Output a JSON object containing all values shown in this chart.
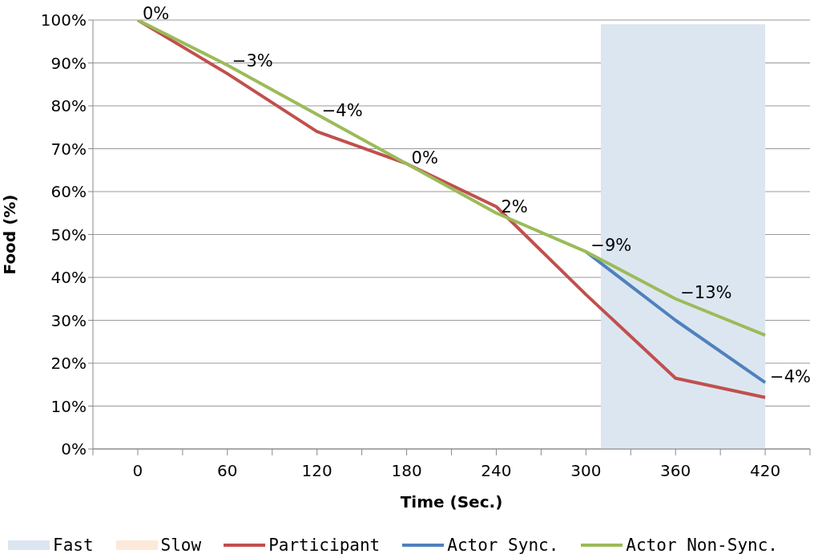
{
  "chart_data": {
    "type": "line",
    "xlabel": "Time (Sec.)",
    "ylabel": "Food (%)",
    "x": [
      0,
      60,
      120,
      180,
      240,
      300,
      360,
      420
    ],
    "xlim": [
      -30,
      450
    ],
    "xticks": [
      {
        "value": -30,
        "label": null
      },
      {
        "value": 0,
        "label": "0"
      },
      {
        "value": 30,
        "label": null
      },
      {
        "value": 60,
        "label": "60"
      },
      {
        "value": 90,
        "label": null
      },
      {
        "value": 120,
        "label": "120"
      },
      {
        "value": 150,
        "label": null
      },
      {
        "value": 180,
        "label": "180"
      },
      {
        "value": 210,
        "label": null
      },
      {
        "value": 240,
        "label": "240"
      },
      {
        "value": 270,
        "label": null
      },
      {
        "value": 300,
        "label": "300"
      },
      {
        "value": 330,
        "label": null
      },
      {
        "value": 360,
        "label": "360"
      },
      {
        "value": 390,
        "label": null
      },
      {
        "value": 420,
        "label": "420"
      },
      {
        "value": 450,
        "label": null
      }
    ],
    "ylim": [
      0,
      100
    ],
    "yticks": [
      {
        "value": 0,
        "label": "0%"
      },
      {
        "value": 10,
        "label": "10%"
      },
      {
        "value": 20,
        "label": "20%"
      },
      {
        "value": 30,
        "label": "30%"
      },
      {
        "value": 40,
        "label": "40%"
      },
      {
        "value": 50,
        "label": "50%"
      },
      {
        "value": 60,
        "label": "60%"
      },
      {
        "value": 70,
        "label": "70%"
      },
      {
        "value": 80,
        "label": "80%"
      },
      {
        "value": 90,
        "label": "90%"
      },
      {
        "value": 100,
        "label": "100%"
      }
    ],
    "series": [
      {
        "name": "Slow",
        "type": "area",
        "color": "#fde9d9",
        "values": [
          null,
          null,
          null,
          null,
          null,
          null,
          null,
          null
        ]
      },
      {
        "name": "Participant",
        "color": "#c0504d",
        "values": [
          100,
          87.5,
          74,
          66.5,
          56.5,
          36,
          16.5,
          12
        ]
      },
      {
        "name": "Actor Sync.",
        "color": "#4f81bd",
        "values": [
          null,
          null,
          null,
          null,
          null,
          46,
          30,
          15.5
        ]
      },
      {
        "name": "Actor Non-Sync.",
        "color": "#9bbb59",
        "values": [
          100,
          89.5,
          78,
          66.5,
          55,
          46,
          35,
          26.5
        ]
      }
    ],
    "bands": [
      {
        "axis": "x",
        "from": 310,
        "to": 420,
        "label": "Fast",
        "color": "#dce6f1"
      }
    ],
    "annotations": [
      {
        "text": "0%",
        "x": 0,
        "y": 100
      },
      {
        "text": "−3%",
        "x": 60,
        "y": 89
      },
      {
        "text": "−4%",
        "x": 120,
        "y": 77.5
      },
      {
        "text": "0%",
        "x": 180,
        "y": 66.5
      },
      {
        "text": "2%",
        "x": 240,
        "y": 55
      },
      {
        "text": "−9%",
        "x": 300,
        "y": 46
      },
      {
        "text": "−13%",
        "x": 360,
        "y": 35
      },
      {
        "text": "−4%",
        "x": 420,
        "y": 15.5
      }
    ],
    "grid": "y",
    "legend": "bottom",
    "marker": "none",
    "line_style": "solid"
  }
}
